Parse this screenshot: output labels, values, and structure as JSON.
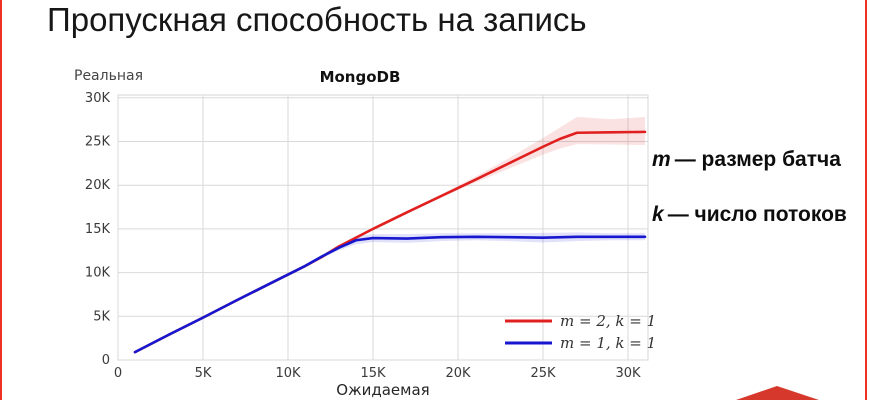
{
  "slide": {
    "title": "Пропускная способность на запись",
    "border_color": "#ee3124",
    "logo_color": "#d6392c",
    "annotations": {
      "m_var": "m",
      "m_text": "— размер батча",
      "k_var": "k",
      "k_text": "— число потоков"
    }
  },
  "chart_data": {
    "type": "line",
    "title": "MongoDB",
    "xlabel": "Ожидаемая",
    "ylabel": "Реальная",
    "units": "K",
    "xlim": [
      0,
      31.2
    ],
    "ylim": [
      0,
      30.3
    ],
    "xticks": [
      0,
      5,
      10,
      15,
      20,
      25,
      30
    ],
    "yticks": [
      0,
      5,
      10,
      15,
      20,
      25,
      30
    ],
    "xtick_labels": [
      "0",
      "5K",
      "10K",
      "15K",
      "20K",
      "25K",
      "30K"
    ],
    "ytick_labels": [
      "0",
      "5K",
      "10K",
      "15K",
      "20K",
      "25K",
      "30K"
    ],
    "grid": true,
    "grid_color": "#d9d9d9",
    "plot_border_color": "#d5d5d5",
    "legend_position": "lower right",
    "series": [
      {
        "name": "m = 2, k = 1",
        "color": "#e01f1f",
        "band_color": "rgba(224,31,31,0.13)",
        "x": [
          1,
          3,
          5,
          7,
          9,
          11,
          12,
          13,
          15,
          17,
          19,
          21,
          23,
          25,
          26,
          27,
          29,
          31
        ],
        "y": [
          0.9,
          2.9,
          4.85,
          6.85,
          8.8,
          10.75,
          11.8,
          13.0,
          15.0,
          16.9,
          18.75,
          20.6,
          22.5,
          24.4,
          25.3,
          26.0,
          26.05,
          26.1
        ],
        "band_upper": [
          0.9,
          2.9,
          4.85,
          6.85,
          8.8,
          10.75,
          11.8,
          13.05,
          15.1,
          17.05,
          18.95,
          20.95,
          23.1,
          25.4,
          26.6,
          27.8,
          27.55,
          27.8
        ],
        "band_lower": [
          0.9,
          2.9,
          4.85,
          6.85,
          8.8,
          10.75,
          11.8,
          12.95,
          14.9,
          16.75,
          18.55,
          20.3,
          21.9,
          23.5,
          24.2,
          24.7,
          24.65,
          24.6
        ]
      },
      {
        "name": "m = 1, k = 1",
        "color": "#1717cf",
        "band_color": "rgba(23,23,207,0.13)",
        "x": [
          1,
          3,
          5,
          7,
          9,
          11,
          12,
          13,
          14,
          15,
          17,
          19,
          21,
          23,
          25,
          27,
          29,
          31
        ],
        "y": [
          0.9,
          2.9,
          4.85,
          6.85,
          8.8,
          10.75,
          11.85,
          12.85,
          13.7,
          13.95,
          13.9,
          14.05,
          14.1,
          14.05,
          14.0,
          14.1,
          14.1,
          14.1
        ],
        "band_upper": [
          0.9,
          2.9,
          4.85,
          6.85,
          8.8,
          10.8,
          12.0,
          13.15,
          14.15,
          14.4,
          14.4,
          14.5,
          14.5,
          14.5,
          14.55,
          14.6,
          14.5,
          14.5
        ],
        "band_lower": [
          0.9,
          2.9,
          4.85,
          6.85,
          8.8,
          10.7,
          11.7,
          12.55,
          13.25,
          13.5,
          13.4,
          13.6,
          13.7,
          13.6,
          13.45,
          13.6,
          13.7,
          13.7
        ]
      }
    ]
  }
}
